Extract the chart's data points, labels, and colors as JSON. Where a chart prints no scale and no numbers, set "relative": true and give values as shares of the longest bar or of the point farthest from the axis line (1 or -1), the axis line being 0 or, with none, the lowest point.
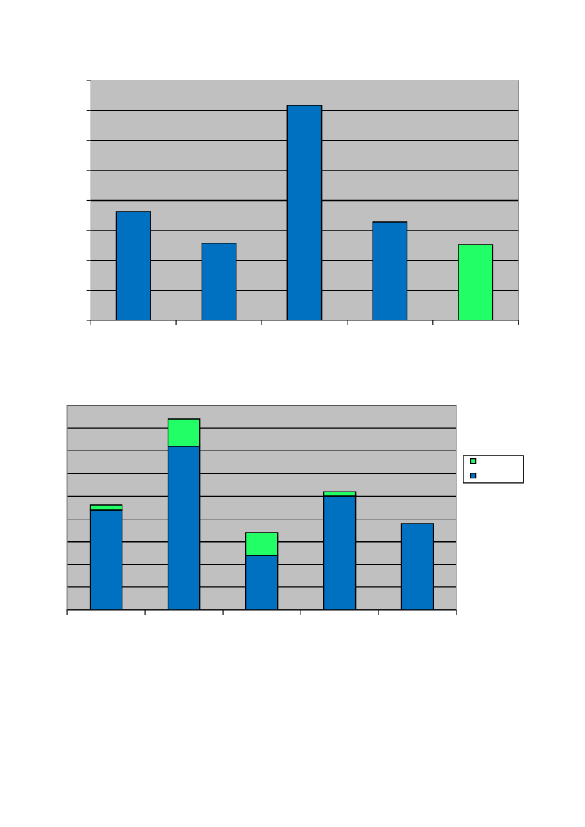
{
  "chart_data": [
    {
      "type": "bar",
      "relative": true,
      "grid": "y",
      "legend": false,
      "categories": [
        null,
        null,
        null,
        null,
        null
      ],
      "values": [
        0.507,
        0.359,
        1,
        0.457,
        0.352
      ],
      "colors": [
        "#0070c0",
        "#0070c0",
        "#0070c0",
        "#0070c0",
        "#22ff66"
      ]
    },
    {
      "type": "bar",
      "relative": true,
      "stacked": true,
      "grid": "y",
      "categories": [
        null,
        null,
        null,
        null,
        null
      ],
      "series": [
        {
          "color": "#0070c0",
          "values": [
            0.522,
            0.856,
            0.285,
            0.596,
            0.452
          ]
        },
        {
          "color": "#22ff66",
          "values": [
            0.026,
            0.144,
            0.119,
            0.022,
            null
          ]
        }
      ]
    }
  ]
}
